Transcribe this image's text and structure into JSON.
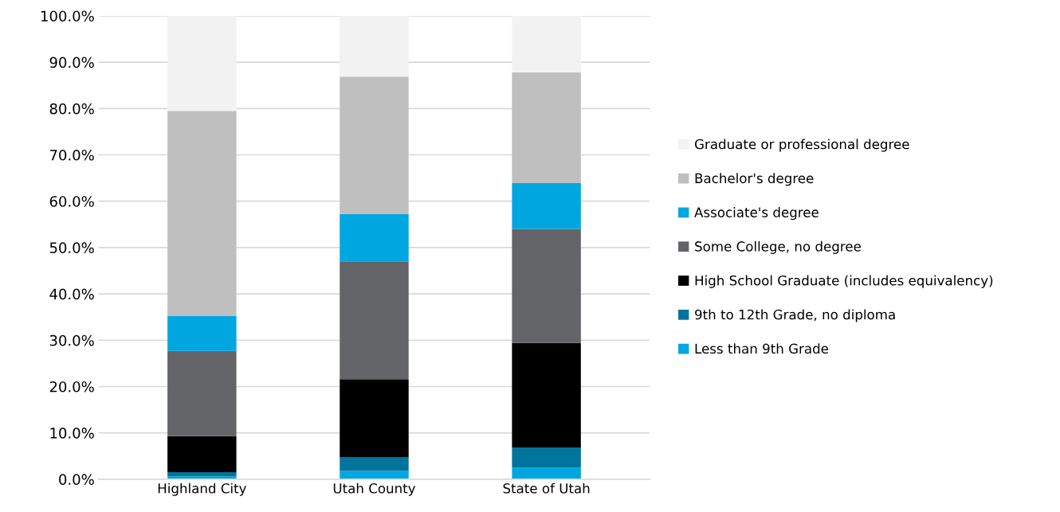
{
  "chart_data": {
    "type": "bar",
    "stacked": true,
    "categories": [
      "Highland City",
      "Utah County",
      "State of Utah"
    ],
    "series": [
      {
        "name": "Less than 9th Grade",
        "color": "#00a6e0",
        "values": [
          0.6,
          1.8,
          2.5
        ]
      },
      {
        "name": "9th to 12th Grade, no diploma",
        "color": "#00759c",
        "values": [
          0.9,
          2.9,
          4.3
        ]
      },
      {
        "name": "High School Graduate (includes equivalency)",
        "color": "#000000",
        "values": [
          7.8,
          16.9,
          22.6
        ]
      },
      {
        "name": "Some College, no degree",
        "color": "#636467",
        "values": [
          18.4,
          25.4,
          24.6
        ]
      },
      {
        "name": "Associate's degree",
        "color": "#00a6e0",
        "values": [
          7.6,
          10.2,
          9.9
        ]
      },
      {
        "name": "Bachelor's degree",
        "color": "#bfbfbf",
        "values": [
          44.2,
          29.7,
          23.9
        ]
      },
      {
        "name": "Graduate or professional degree",
        "color": "#f2f2f2",
        "values": [
          20.6,
          13.1,
          12.2
        ]
      }
    ],
    "ylim": [
      0,
      100
    ],
    "yticks": [
      {
        "value": 0,
        "label": "0.0%"
      },
      {
        "value": 10,
        "label": "10.0%"
      },
      {
        "value": 20,
        "label": "20.0%"
      },
      {
        "value": 30,
        "label": "30.0%"
      },
      {
        "value": 40,
        "label": "40.0%"
      },
      {
        "value": 50,
        "label": "50.0%"
      },
      {
        "value": 60,
        "label": "60.0%"
      },
      {
        "value": 70,
        "label": "70.0%"
      },
      {
        "value": 80,
        "label": "80.0%"
      },
      {
        "value": 90,
        "label": "90.0%"
      },
      {
        "value": 100,
        "label": "100.0%"
      }
    ],
    "grid": "y",
    "legend": "right"
  }
}
